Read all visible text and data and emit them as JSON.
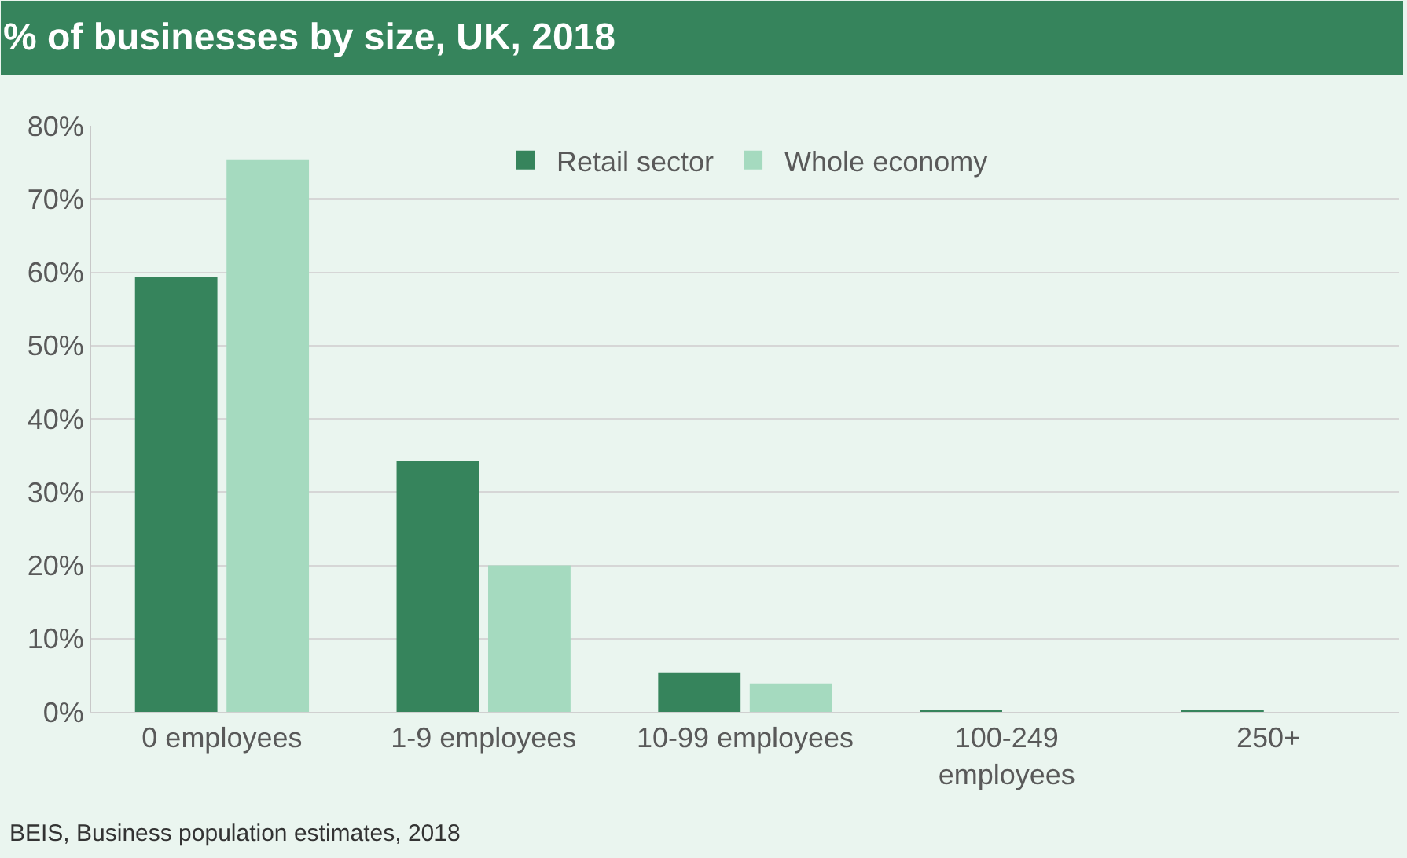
{
  "chart_data": {
    "type": "bar",
    "title": "% of businesses by size, UK, 2018",
    "categories": [
      "0 employees",
      "1-9 employees",
      "10-99 employees",
      "100-249\nemployees",
      "250+"
    ],
    "series": [
      {
        "name": "Retail sector",
        "color": "#36845c",
        "values": [
          59.4,
          34.2,
          5.4,
          0.1,
          0.1
        ]
      },
      {
        "name": "Whole economy",
        "color": "#a5dabf",
        "values": [
          75.3,
          20.0,
          3.9,
          0.0,
          0.0
        ]
      }
    ],
    "ylim": [
      0,
      80
    ],
    "yticks": [
      {
        "value": 0,
        "label": "0%"
      },
      {
        "value": 10,
        "label": "10%"
      },
      {
        "value": 20,
        "label": "20%"
      },
      {
        "value": 30,
        "label": "30%"
      },
      {
        "value": 40,
        "label": "40%"
      },
      {
        "value": 50,
        "label": "50%"
      },
      {
        "value": 60,
        "label": "60%"
      },
      {
        "value": 70,
        "label": "70%"
      },
      {
        "value": 80,
        "label": "80%"
      }
    ],
    "grid": "y",
    "legend": "top",
    "annotations": [
      "BEIS, Business population estimates, 2018"
    ]
  }
}
